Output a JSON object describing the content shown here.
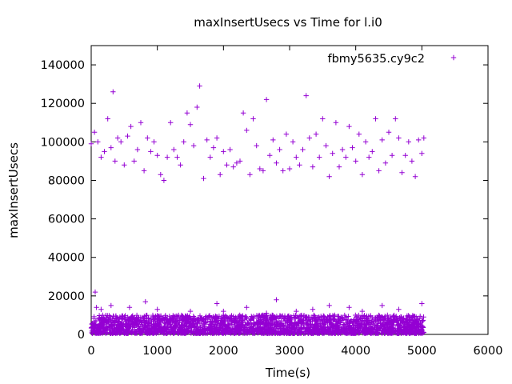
{
  "chart_data": {
    "type": "scatter",
    "title": "maxInsertUsecs vs Time for l.i0",
    "xlabel": "Time(s)",
    "ylabel": "maxInsertUsecs",
    "xlim": [
      0,
      6000
    ],
    "ylim": [
      0,
      150000
    ],
    "x_ticks": [
      "0",
      "1000",
      "2000",
      "3000",
      "4000",
      "5000",
      "6000"
    ],
    "y_ticks": [
      "0",
      "20000",
      "40000",
      "60000",
      "80000",
      "100000",
      "120000",
      "140000"
    ],
    "x_tick_values": [
      0,
      1000,
      2000,
      3000,
      4000,
      5000,
      6000
    ],
    "y_tick_values": [
      0,
      20000,
      40000,
      60000,
      80000,
      100000,
      120000,
      140000
    ],
    "grid": false,
    "legend_position": "top-right",
    "series": [
      {
        "name": "fbmy5635.cy9c2",
        "color": "#9400d3",
        "marker": "plus",
        "points": [
          [
            0,
            99000
          ],
          [
            50,
            105000
          ],
          [
            100,
            100000
          ],
          [
            150,
            92000
          ],
          [
            200,
            95000
          ],
          [
            250,
            112000
          ],
          [
            300,
            97000
          ],
          [
            330,
            126000
          ],
          [
            360,
            90000
          ],
          [
            400,
            102000
          ],
          [
            450,
            100000
          ],
          [
            500,
            88000
          ],
          [
            550,
            103000
          ],
          [
            600,
            108000
          ],
          [
            650,
            90000
          ],
          [
            700,
            96000
          ],
          [
            750,
            110000
          ],
          [
            800,
            85000
          ],
          [
            850,
            102000
          ],
          [
            900,
            95000
          ],
          [
            950,
            100000
          ],
          [
            1000,
            93000
          ],
          [
            1050,
            83000
          ],
          [
            1100,
            80000
          ],
          [
            1150,
            92000
          ],
          [
            1200,
            110000
          ],
          [
            1250,
            96000
          ],
          [
            1300,
            92000
          ],
          [
            1350,
            88000
          ],
          [
            1400,
            100000
          ],
          [
            1450,
            115000
          ],
          [
            1500,
            109000
          ],
          [
            1550,
            98000
          ],
          [
            1600,
            118000
          ],
          [
            1640,
            129000
          ],
          [
            1700,
            81000
          ],
          [
            1750,
            101000
          ],
          [
            1800,
            92000
          ],
          [
            1850,
            97000
          ],
          [
            1900,
            102000
          ],
          [
            1950,
            83000
          ],
          [
            2000,
            95000
          ],
          [
            2050,
            88000
          ],
          [
            2100,
            96000
          ],
          [
            2150,
            87000
          ],
          [
            2200,
            89000
          ],
          [
            2250,
            90000
          ],
          [
            2300,
            115000
          ],
          [
            2350,
            106000
          ],
          [
            2400,
            83000
          ],
          [
            2450,
            112000
          ],
          [
            2500,
            98000
          ],
          [
            2550,
            86000
          ],
          [
            2600,
            85000
          ],
          [
            2650,
            122000
          ],
          [
            2700,
            93000
          ],
          [
            2750,
            101000
          ],
          [
            2800,
            89000
          ],
          [
            2850,
            96000
          ],
          [
            2900,
            85000
          ],
          [
            2950,
            104000
          ],
          [
            3000,
            86000
          ],
          [
            3050,
            100000
          ],
          [
            3100,
            92000
          ],
          [
            3150,
            88000
          ],
          [
            3200,
            96000
          ],
          [
            3250,
            124000
          ],
          [
            3300,
            102000
          ],
          [
            3350,
            87000
          ],
          [
            3400,
            104000
          ],
          [
            3450,
            92000
          ],
          [
            3500,
            112000
          ],
          [
            3550,
            98000
          ],
          [
            3600,
            82000
          ],
          [
            3650,
            94000
          ],
          [
            3700,
            110000
          ],
          [
            3750,
            87000
          ],
          [
            3800,
            96000
          ],
          [
            3850,
            92000
          ],
          [
            3900,
            108000
          ],
          [
            3950,
            97000
          ],
          [
            4000,
            90000
          ],
          [
            4050,
            104000
          ],
          [
            4100,
            83000
          ],
          [
            4150,
            100000
          ],
          [
            4200,
            92000
          ],
          [
            4250,
            95000
          ],
          [
            4300,
            112000
          ],
          [
            4350,
            85000
          ],
          [
            4400,
            101000
          ],
          [
            4450,
            89000
          ],
          [
            4500,
            105000
          ],
          [
            4550,
            93000
          ],
          [
            4600,
            112000
          ],
          [
            4650,
            102000
          ],
          [
            4700,
            84000
          ],
          [
            4750,
            93000
          ],
          [
            4800,
            100000
          ],
          [
            4850,
            90000
          ],
          [
            4900,
            82000
          ],
          [
            4950,
            101000
          ],
          [
            5000,
            94000
          ],
          [
            5030,
            102000
          ],
          [
            60,
            22000
          ],
          [
            80,
            14000
          ],
          [
            150,
            13000
          ],
          [
            300,
            15000
          ],
          [
            580,
            14000
          ],
          [
            820,
            17000
          ],
          [
            1000,
            13000
          ],
          [
            1500,
            12000
          ],
          [
            1900,
            16000
          ],
          [
            2000,
            12000
          ],
          [
            2350,
            14000
          ],
          [
            2650,
            11000
          ],
          [
            2800,
            18000
          ],
          [
            3100,
            12000
          ],
          [
            3350,
            13000
          ],
          [
            3600,
            15000
          ],
          [
            3900,
            14000
          ],
          [
            4100,
            12000
          ],
          [
            4400,
            15000
          ],
          [
            4650,
            13000
          ],
          [
            5000,
            16000
          ]
        ]
      }
    ],
    "dense_band": {
      "x_range": [
        0,
        5030
      ],
      "y_range": [
        500,
        10000
      ],
      "note": "dense cloud of low values near zero"
    }
  }
}
